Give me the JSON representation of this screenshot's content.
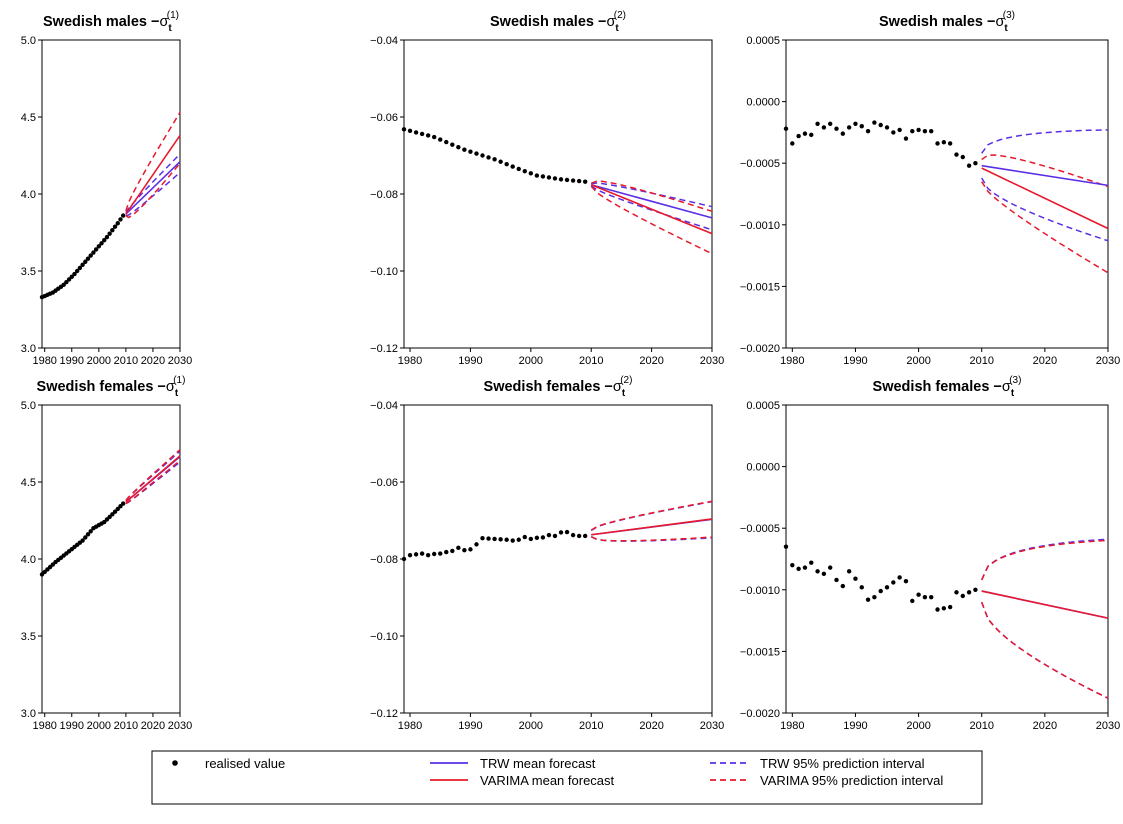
{
  "legend": {
    "items": [
      {
        "key": "realised",
        "label": "realised value",
        "style": "dots",
        "color": "#000000"
      },
      {
        "key": "trw_mean",
        "label": "TRW mean forecast",
        "style": "solid",
        "color": "#5a2fe6"
      },
      {
        "key": "varima_mean",
        "label": "VARIMA mean forecast",
        "style": "solid",
        "color": "#e8192c"
      },
      {
        "key": "trw_pi",
        "label": "TRW 95% prediction interval",
        "style": "dashed",
        "color": "#5a2fe6"
      },
      {
        "key": "varima_pi",
        "label": "VARIMA 95% prediction interval",
        "style": "dashed",
        "color": "#e8192c"
      }
    ]
  },
  "chart_data": [
    {
      "type": "line",
      "title_prefix": "Swedish males",
      "title_symbol": "σ",
      "title_sub": "t",
      "title_sup": "(1)",
      "xlim": [
        1979,
        2030
      ],
      "ylim": [
        3.0,
        5.0
      ],
      "x_ticks": [
        1980,
        1990,
        2000,
        2010,
        2020,
        2030
      ],
      "y_ticks": [
        3.0,
        3.5,
        4.0,
        4.5,
        5.0
      ],
      "y_tick_labels": [
        "3.0",
        "3.5",
        "4.0",
        "4.5",
        "5.0"
      ],
      "realised": {
        "x_start": 1979,
        "x_end": 2009,
        "points": [
          [
            1979,
            3.33
          ],
          [
            1983,
            3.36
          ],
          [
            1987,
            3.41
          ],
          [
            1991,
            3.48
          ],
          [
            1995,
            3.56
          ],
          [
            1999,
            3.64
          ],
          [
            2003,
            3.72
          ],
          [
            2007,
            3.81
          ],
          [
            2009,
            3.86
          ]
        ]
      },
      "forecasts": {
        "start": 2010,
        "end": 2030,
        "trw_mean": [
          3.87,
          4.21
        ],
        "trw_lower": [
          3.86,
          4.14
        ],
        "trw_upper": [
          3.88,
          4.26
        ],
        "varima_mean": [
          3.87,
          4.38
        ],
        "varima_lower": [
          3.86,
          4.2
        ],
        "varima_upper": [
          3.89,
          4.53
        ]
      }
    },
    {
      "type": "line",
      "title_prefix": "Swedish males",
      "title_symbol": "σ",
      "title_sub": "t",
      "title_sup": "(2)",
      "xlim": [
        1979,
        2030
      ],
      "ylim": [
        -0.12,
        -0.04
      ],
      "x_ticks": [
        1980,
        1990,
        2000,
        2010,
        2020,
        2030
      ],
      "y_ticks": [
        -0.12,
        -0.1,
        -0.08,
        -0.06,
        -0.04
      ],
      "y_tick_labels": [
        "−0.12",
        "−0.10",
        "−0.08",
        "−0.06",
        "−0.04"
      ],
      "realised": {
        "x_start": 1979,
        "x_end": 2009,
        "points": [
          [
            1979,
            -0.0632
          ],
          [
            1984,
            -0.0652
          ],
          [
            1989,
            -0.0685
          ],
          [
            1994,
            -0.071
          ],
          [
            1998,
            -0.0735
          ],
          [
            2001,
            -0.0752
          ],
          [
            2005,
            -0.0762
          ],
          [
            2009,
            -0.0768
          ]
        ]
      },
      "forecasts": {
        "start": 2010,
        "end": 2030,
        "trw_mean": [
          -0.0776,
          -0.0862
        ],
        "trw_lower": [
          -0.0779,
          -0.0893
        ],
        "trw_upper": [
          -0.0773,
          -0.0833
        ],
        "varima_mean": [
          -0.0776,
          -0.0903
        ],
        "varima_lower": [
          -0.078,
          -0.0955
        ],
        "varima_upper": [
          -0.0772,
          -0.0845
        ]
      }
    },
    {
      "type": "line",
      "title_prefix": "Swedish males",
      "title_symbol": "σ",
      "title_sub": "t",
      "title_sup": "(3)",
      "xlim": [
        1979,
        2030
      ],
      "ylim": [
        -0.002,
        0.0005
      ],
      "x_ticks": [
        1980,
        1990,
        2000,
        2010,
        2020,
        2030
      ],
      "y_ticks": [
        -0.002,
        -0.0015,
        -0.001,
        -0.0005,
        0.0,
        0.0005
      ],
      "y_tick_labels": [
        "−0.0020",
        "−0.0015",
        "−0.0010",
        "−0.0005",
        "0.0000",
        "0.0005"
      ],
      "realised": {
        "x_start": 1979,
        "x_end": 2009,
        "values": [
          -0.00022,
          -0.00034,
          -0.00028,
          -0.00026,
          -0.00027,
          -0.00018,
          -0.00021,
          -0.00018,
          -0.00022,
          -0.00026,
          -0.00021,
          -0.00018,
          -0.0002,
          -0.00024,
          -0.00017,
          -0.00019,
          -0.00021,
          -0.00025,
          -0.00023,
          -0.0003,
          -0.00024,
          -0.00023,
          -0.00024,
          -0.00024,
          -0.00034,
          -0.00033,
          -0.00034,
          -0.00043,
          -0.00045,
          -0.00052,
          -0.0005
        ]
      },
      "forecasts": {
        "start": 2010,
        "end": 2030,
        "trw_mean": [
          -0.00052,
          -0.00068
        ],
        "trw_lower": [
          -0.00062,
          -0.00113
        ],
        "trw_upper": [
          -0.00042,
          -0.00023
        ],
        "varima_mean": [
          -0.00054,
          -0.00103
        ],
        "varima_lower": [
          -0.00065,
          -0.00139
        ],
        "varima_upper": [
          -0.00047,
          -0.00069
        ]
      }
    },
    {
      "type": "line",
      "title_prefix": "Swedish females",
      "title_symbol": "σ",
      "title_sub": "t",
      "title_sup": "(1)",
      "xlim": [
        1979,
        2030
      ],
      "ylim": [
        3.0,
        5.0
      ],
      "x_ticks": [
        1980,
        1990,
        2000,
        2010,
        2020,
        2030
      ],
      "y_ticks": [
        3.0,
        3.5,
        4.0,
        4.5,
        5.0
      ],
      "y_tick_labels": [
        "3.0",
        "3.5",
        "4.0",
        "4.5",
        "5.0"
      ],
      "realised": {
        "x_start": 1979,
        "x_end": 2009,
        "points": [
          [
            1979,
            3.9
          ],
          [
            1984,
            3.98
          ],
          [
            1989,
            4.05
          ],
          [
            1994,
            4.12
          ],
          [
            1998,
            4.2
          ],
          [
            2002,
            4.24
          ],
          [
            2005,
            4.29
          ],
          [
            2009,
            4.36
          ]
        ]
      },
      "forecasts": {
        "start": 2010,
        "end": 2030,
        "trw_mean": [
          4.37,
          4.665
        ],
        "trw_lower": [
          4.36,
          4.63
        ],
        "trw_upper": [
          4.38,
          4.7
        ],
        "varima_mean": [
          4.37,
          4.67
        ],
        "varima_lower": [
          4.36,
          4.64
        ],
        "varima_upper": [
          4.38,
          4.71
        ]
      }
    },
    {
      "type": "line",
      "title_prefix": "Swedish females",
      "title_symbol": "σ",
      "title_sub": "t",
      "title_sup": "(2)",
      "xlim": [
        1979,
        2030
      ],
      "ylim": [
        -0.12,
        -0.04
      ],
      "x_ticks": [
        1980,
        1990,
        2000,
        2010,
        2020,
        2030
      ],
      "y_ticks": [
        -0.12,
        -0.1,
        -0.08,
        -0.06,
        -0.04
      ],
      "y_tick_labels": [
        "−0.12",
        "−0.10",
        "−0.08",
        "−0.06",
        "−0.04"
      ],
      "realised": {
        "x_start": 1979,
        "x_end": 2009,
        "values": [
          -0.08,
          -0.079,
          -0.0788,
          -0.0786,
          -0.079,
          -0.0787,
          -0.0786,
          -0.0782,
          -0.0779,
          -0.0771,
          -0.0777,
          -0.0775,
          -0.0762,
          -0.0746,
          -0.0747,
          -0.0748,
          -0.0749,
          -0.075,
          -0.0752,
          -0.075,
          -0.0743,
          -0.0748,
          -0.0745,
          -0.0744,
          -0.0738,
          -0.074,
          -0.0731,
          -0.073,
          -0.0738,
          -0.074,
          -0.074
        ]
      },
      "forecasts": {
        "start": 2010,
        "end": 2030,
        "trw_mean": [
          -0.0737,
          -0.0697
        ],
        "trw_lower": [
          -0.0742,
          -0.0745
        ],
        "trw_upper": [
          -0.0726,
          -0.0651
        ],
        "varima_mean": [
          -0.0737,
          -0.0696
        ],
        "varima_lower": [
          -0.0742,
          -0.0743
        ],
        "varima_upper": [
          -0.0725,
          -0.065
        ]
      }
    },
    {
      "type": "line",
      "title_prefix": "Swedish females",
      "title_symbol": "σ",
      "title_sub": "t",
      "title_sup": "(3)",
      "xlim": [
        1979,
        2030
      ],
      "ylim": [
        -0.002,
        0.0005
      ],
      "x_ticks": [
        1980,
        1990,
        2000,
        2010,
        2020,
        2030
      ],
      "y_ticks": [
        -0.002,
        -0.0015,
        -0.001,
        -0.0005,
        0.0,
        0.0005
      ],
      "y_tick_labels": [
        "−0.0020",
        "−0.0015",
        "−0.0010",
        "−0.0005",
        "0.0000",
        "0.0005"
      ],
      "realised": {
        "x_start": 1979,
        "x_end": 2009,
        "values": [
          -0.00065,
          -0.0008,
          -0.00083,
          -0.00082,
          -0.00078,
          -0.00085,
          -0.00087,
          -0.00082,
          -0.00092,
          -0.00097,
          -0.00085,
          -0.00091,
          -0.00098,
          -0.00108,
          -0.00106,
          -0.00101,
          -0.00098,
          -0.00094,
          -0.0009,
          -0.00093,
          -0.00109,
          -0.00104,
          -0.00106,
          -0.00106,
          -0.00116,
          -0.00115,
          -0.00114,
          -0.00102,
          -0.00105,
          -0.00102,
          -0.001
        ]
      },
      "forecasts": {
        "start": 2010,
        "end": 2030,
        "trw_mean": [
          -0.00101,
          -0.00123
        ],
        "trw_lower": [
          -0.0011,
          -0.00188
        ],
        "trw_upper": [
          -0.00092,
          -0.00059
        ],
        "varima_mean": [
          -0.00101,
          -0.00123
        ],
        "varima_lower": [
          -0.0011,
          -0.00188
        ],
        "varima_upper": [
          -0.00092,
          -0.0006
        ]
      }
    }
  ]
}
